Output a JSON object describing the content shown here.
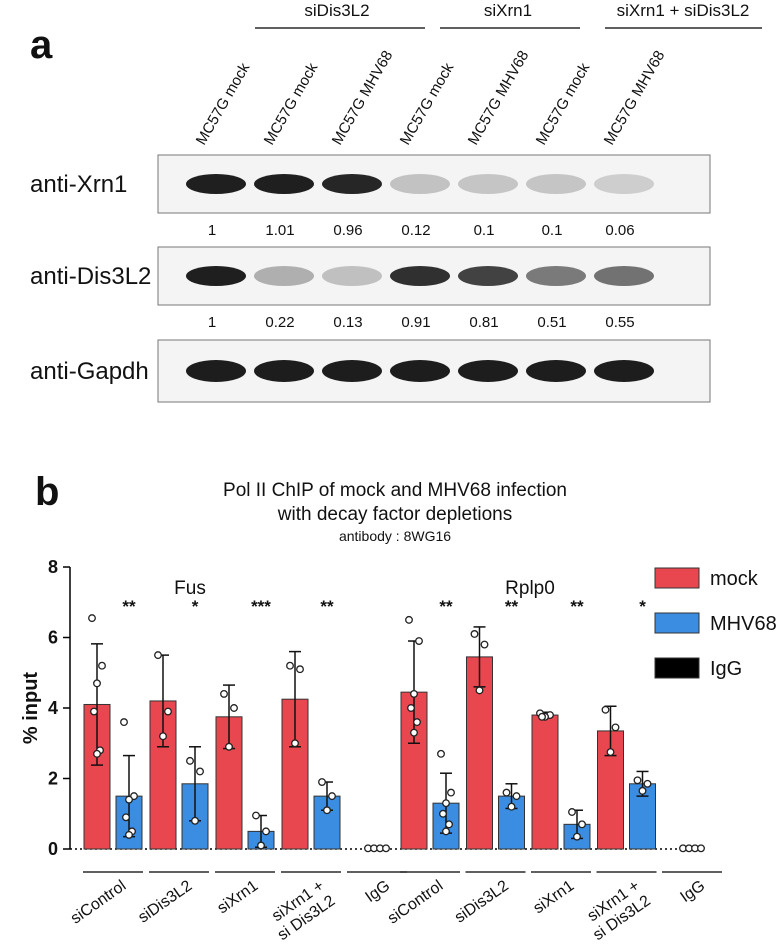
{
  "blot": {
    "panel_label": "a",
    "treatment_groups": [
      "siDis3L2",
      "siXrn1",
      "siXrn1 + siDis3L2"
    ],
    "lanes": [
      "MC57G mock",
      "MC57G mock",
      "MC57G MHV68",
      "MC57G mock",
      "MC57G MHV68",
      "MC57G mock",
      "MC57G MHV68"
    ],
    "rows": [
      {
        "label": "anti-Xrn1",
        "quantification": [
          1,
          1.01,
          0.96,
          0.12,
          0.1,
          0.1,
          0.06
        ]
      },
      {
        "label": "anti-Dis3L2",
        "quantification": [
          1,
          0.22,
          0.13,
          0.91,
          0.81,
          0.51,
          0.55
        ]
      },
      {
        "label": "anti-Gapdh"
      }
    ]
  },
  "chart_data": {
    "type": "bar",
    "panel_label": "b",
    "title": "Pol II ChIP of mock and MHV68 infection",
    "title_line2": "with decay factor depletions",
    "subtitle": "antibody : 8WG16",
    "y_label": "% input",
    "ylim": [
      0,
      8
    ],
    "yticks": [
      0,
      2,
      4,
      6,
      8
    ],
    "gene_labels": [
      "Fus",
      "Rplp0"
    ],
    "categories": [
      "siControl",
      "siDis3L2",
      "siXrn1",
      [
        "siXrn1 +",
        "si Dis3L2"
      ],
      "IgG",
      "siControl",
      "siDis3L2",
      "siXrn1",
      [
        "siXrn1 +",
        "si Dis3L2"
      ],
      "IgG"
    ],
    "legend": "upper right",
    "series": [
      {
        "name": "mock",
        "color": "#e8474f",
        "values": [
          4.1,
          4.2,
          3.75,
          4.25,
          null,
          4.45,
          5.45,
          3.8,
          3.35,
          null
        ],
        "errors": [
          1.72,
          1.3,
          0.9,
          1.35,
          null,
          1.45,
          0.85,
          0.08,
          0.7,
          null
        ],
        "points": [
          [
            6.55,
            5.2,
            4.7,
            3.9,
            2.8,
            2.7
          ],
          [
            5.5,
            3.9,
            3.2
          ],
          [
            4.4,
            4.0,
            2.9
          ],
          [
            5.2,
            5.1,
            3.0
          ],
          null,
          [
            6.5,
            5.9,
            4.4,
            4.0,
            3.6,
            3.3
          ],
          [
            6.1,
            5.8,
            4.5
          ],
          [
            3.85,
            3.8,
            3.75,
            3.75
          ],
          [
            3.95,
            3.45,
            2.75
          ],
          null
        ]
      },
      {
        "name": "MHV68",
        "color": "#3a8de0",
        "values": [
          1.5,
          1.85,
          0.5,
          1.5,
          null,
          1.3,
          1.5,
          0.7,
          1.85,
          null
        ],
        "errors": [
          1.15,
          1.05,
          0.45,
          0.4,
          null,
          0.85,
          0.35,
          0.4,
          0.35,
          null
        ],
        "points": [
          [
            3.6,
            1.5,
            1.4,
            0.9,
            0.5,
            0.4
          ],
          [
            2.5,
            2.2,
            0.8
          ],
          [
            0.95,
            0.5,
            0.1
          ],
          [
            1.9,
            1.5,
            1.1
          ],
          null,
          [
            2.7,
            1.6,
            1.3,
            1.0,
            0.7,
            0.5
          ],
          [
            1.6,
            1.5,
            1.2
          ],
          [
            1.05,
            0.7,
            0.35
          ],
          [
            1.95,
            1.85,
            1.65
          ],
          null
        ]
      },
      {
        "name": "IgG",
        "color": "#000000",
        "values": [
          null,
          null,
          null,
          null,
          0.02,
          null,
          null,
          null,
          null,
          0.02
        ],
        "points": [
          null,
          null,
          null,
          null,
          [
            0.02,
            0.02,
            0.02,
            0.02
          ],
          null,
          null,
          null,
          null,
          [
            0.02,
            0.02,
            0.02,
            0.02
          ]
        ]
      }
    ],
    "significance": [
      "**",
      "*",
      "***",
      "**",
      null,
      "**",
      "**",
      "**",
      "*",
      null
    ]
  }
}
